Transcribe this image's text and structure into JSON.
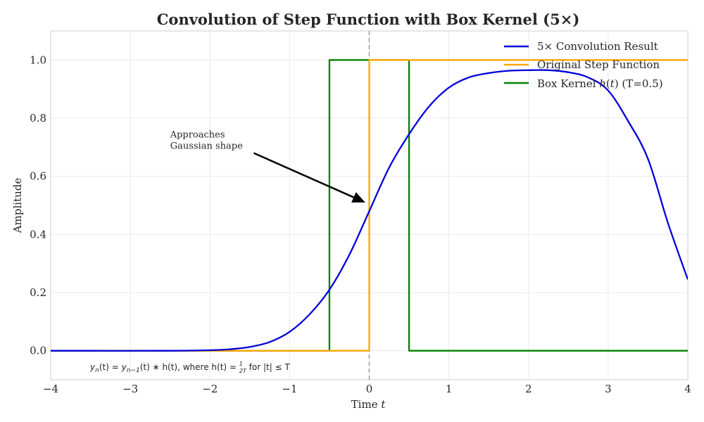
{
  "chart_data": {
    "type": "line",
    "title": "Convolution of Step Function with Box Kernel (5×)",
    "xlabel": "Time t",
    "ylabel": "Amplitude",
    "xlim": [
      -4,
      4
    ],
    "ylim": [
      -0.1,
      1.1
    ],
    "xticks": [
      -4,
      -3,
      -2,
      -1,
      0,
      1,
      2,
      3,
      4
    ],
    "xtick_labels": [
      "−4",
      "−3",
      "−2",
      "−1",
      "0",
      "1",
      "2",
      "3",
      "4"
    ],
    "yticks": [
      0.0,
      0.2,
      0.4,
      0.6,
      0.8,
      1.0
    ],
    "ytick_labels": [
      "0.0",
      "0.2",
      "0.4",
      "0.6",
      "0.8",
      "1.0"
    ],
    "grid": true,
    "legend_position": "top-right",
    "series": [
      {
        "name": "5× Convolution Result",
        "color": "#0000dd",
        "x": [
          -4.0,
          -2.5,
          -2.0,
          -1.75,
          -1.5,
          -1.25,
          -1.0,
          -0.75,
          -0.5,
          -0.25,
          0.0,
          0.25,
          0.5,
          0.75,
          1.0,
          1.25,
          1.5,
          1.75,
          2.0,
          2.25,
          2.5,
          2.75,
          3.0,
          3.25,
          3.5,
          3.75,
          4.0
        ],
        "y": [
          0.0,
          0.0,
          0.002,
          0.005,
          0.013,
          0.03,
          0.065,
          0.125,
          0.21,
          0.33,
          0.48,
          0.63,
          0.745,
          0.84,
          0.905,
          0.94,
          0.955,
          0.963,
          0.965,
          0.965,
          0.958,
          0.94,
          0.895,
          0.79,
          0.66,
          0.44,
          0.245
        ]
      },
      {
        "name": "Original Step Function",
        "color": "#ffa500",
        "x": [
          -4.0,
          0.0,
          0.0,
          4.0
        ],
        "y": [
          0.0,
          0.0,
          1.0,
          1.0
        ]
      },
      {
        "name": "Box Kernel h(t) (T=0.5)",
        "color": "#008000",
        "x": [
          -4.0,
          -0.5,
          -0.5,
          0.5,
          0.5,
          4.0
        ],
        "y": [
          0.0,
          0.0,
          1.0,
          1.0,
          0.0,
          0.0
        ]
      }
    ],
    "reference_line": {
      "x": 0,
      "style": "dashed",
      "color": "#999999"
    },
    "annotations": [
      {
        "text_lines": [
          "Approaches",
          "Gaussian shape"
        ],
        "text_at": [
          -2.5,
          0.7
        ],
        "arrow_from": [
          -1.45,
          0.68
        ],
        "arrow_to": [
          -0.05,
          0.51
        ]
      }
    ],
    "formula": {
      "y_sub": "y",
      "n_sub": "n",
      "text1": "(t) = ",
      "y2": "y",
      "n_minus_1": "n−1",
      "text2": "(t) ∗ h(t), where h(t) = ",
      "frac_num": "1",
      "frac_den": "2T",
      "text3": " for |t| ≤ T"
    },
    "legend": {
      "items": [
        {
          "label": "5× Convolution Result",
          "color": "#0000dd"
        },
        {
          "label": "Original Step Function",
          "color": "#ffa500"
        },
        {
          "label_pre": "Box Kernel ",
          "label_italic": "h",
          "label_post": "(",
          "label_italic2": "t",
          "label_post2": ") (T=0.5)",
          "color": "#008000"
        }
      ]
    },
    "xlabel_pre": "Time ",
    "xlabel_var": "t"
  }
}
